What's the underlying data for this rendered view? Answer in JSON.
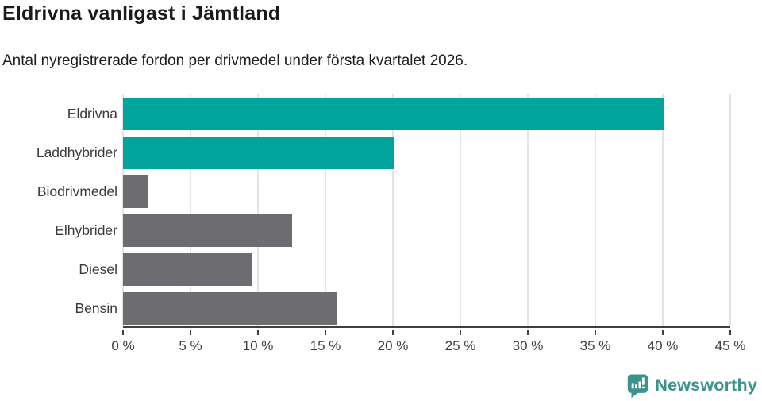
{
  "header": {
    "title": "Eldrivna vanligast i Jämtland",
    "subtitle": "Antal nyregistrerade fordon per drivmedel under första kvartalet 2026."
  },
  "chart_data": {
    "type": "bar",
    "orientation": "horizontal",
    "title": "Eldrivna vanligast i Jämtland",
    "subtitle": "Antal nyregistrerade fordon per drivmedel under första kvartalet 2026.",
    "categories": [
      "Eldrivna",
      "Laddhybrider",
      "Biodrivmedel",
      "Elhybrider",
      "Diesel",
      "Bensin"
    ],
    "values": [
      40.1,
      20.1,
      1.9,
      12.5,
      9.6,
      15.8
    ],
    "unit": "%",
    "xlim": [
      0,
      45
    ],
    "x_tick_values": [
      0,
      5,
      10,
      15,
      20,
      25,
      30,
      35,
      40,
      45
    ],
    "x_tick_labels": [
      "0 %",
      "5 %",
      "10 %",
      "15 %",
      "20 %",
      "25 %",
      "30 %",
      "35 %",
      "40 %",
      "45 %"
    ],
    "bar_colors": [
      "#00a49c",
      "#00a49c",
      "#6d6d71",
      "#6d6d71",
      "#6d6d71",
      "#6d6d71"
    ],
    "highlight_color": "#00a49c",
    "default_color": "#6d6d71",
    "grid": true,
    "gridline_color": "#e4e4e4",
    "axis_color": "#3f3f3f",
    "legend": "none"
  },
  "footer": {
    "brand": "Newsworthy",
    "brand_color": "#3b938e",
    "logo_icon": "bar-chart-speech-bubble-icon"
  }
}
